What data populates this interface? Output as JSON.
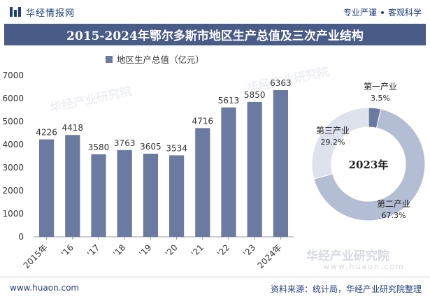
{
  "header": {
    "brand_name": "华经情报网",
    "slogan_left": "专业严谨",
    "slogan_right": "客观科学"
  },
  "title": "2015-2024年鄂尔多斯市地区生产总值及三次产业结构",
  "footer": {
    "url": "www.huaon.com",
    "source": "资料来源：统计局，华经产业研究院整理"
  },
  "watermark": {
    "brand": "华经产业研究院",
    "url": "www.huaon.com"
  },
  "colors": {
    "header_bar": "#495b87",
    "bar": "#6b7aa0",
    "donut_primary": "#6b7aa0",
    "donut_secondary": "#b3bdd4",
    "donut_tertiary": "#dde2ed"
  },
  "chart_data": [
    {
      "type": "bar",
      "legend": "地区生产总值（亿元）",
      "categories": [
        "2015年",
        "'16",
        "'17",
        "'18",
        "'19",
        "'20",
        "'21",
        "'22",
        "'23",
        "2024年"
      ],
      "series": [
        {
          "name": "地区生产总值（亿元）",
          "values": [
            4226,
            4418,
            3580,
            3763,
            3605,
            3534,
            4716,
            5613,
            5850,
            6363
          ]
        }
      ],
      "ylim": [
        0,
        7000
      ],
      "yticks": [
        0,
        1000,
        2000,
        3000,
        4000,
        5000,
        6000,
        7000
      ],
      "grid": false
    },
    {
      "type": "pie",
      "title": "2023年",
      "slices": [
        {
          "label": "第一产业",
          "value": 3.5,
          "value_text": "3.5%"
        },
        {
          "label": "第二产业",
          "value": 67.3,
          "value_text": "67.3%"
        },
        {
          "label": "第三产业",
          "value": 29.2,
          "value_text": "29.2%"
        }
      ]
    }
  ]
}
